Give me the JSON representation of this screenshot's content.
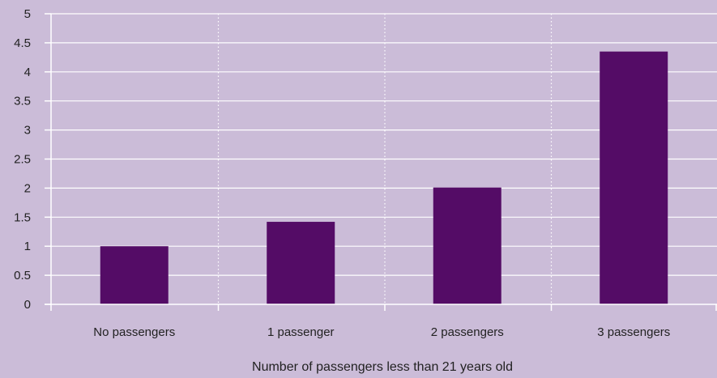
{
  "chart_data": {
    "type": "bar",
    "categories": [
      "No passengers",
      "1 passenger",
      "2 passengers",
      "3 passengers"
    ],
    "values": [
      1.0,
      1.42,
      2.01,
      4.35
    ],
    "title": "",
    "xlabel": "Number of passengers less than 21 years old",
    "ylabel": "",
    "ylim": [
      0,
      5
    ],
    "yticks": [
      "0",
      "0.5",
      "1",
      "1.5",
      "2",
      "2.5",
      "3",
      "3.5",
      "4",
      "4.5",
      "5"
    ],
    "grid": true,
    "legend": "none",
    "colors": {
      "background": "#cbbcd8",
      "bar": "#540c66",
      "gridline": "#ffffff",
      "axis": "#ffffff",
      "text": "#222222"
    }
  }
}
